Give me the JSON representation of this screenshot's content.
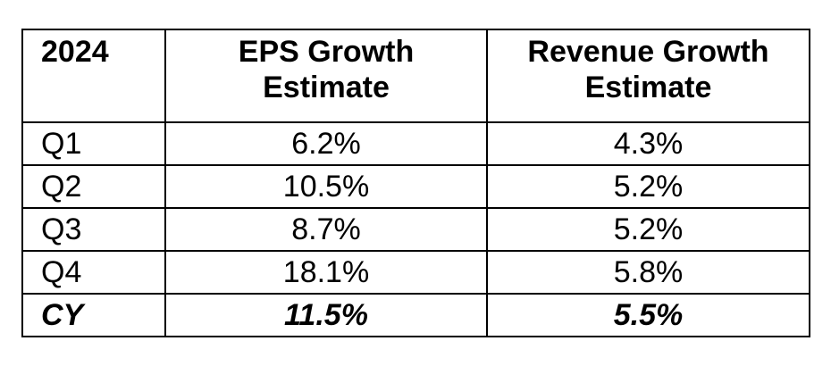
{
  "table": {
    "headers": {
      "period": "2024",
      "eps_line1": "EPS Growth",
      "eps_line2": "Estimate",
      "rev_line1": "Revenue Growth",
      "rev_line2": "Estimate"
    },
    "rows": [
      {
        "period": "Q1",
        "eps": "6.2%",
        "revenue": "4.3%"
      },
      {
        "period": "Q2",
        "eps": "10.5%",
        "revenue": "5.2%"
      },
      {
        "period": "Q3",
        "eps": "8.7%",
        "revenue": "5.2%"
      },
      {
        "period": "Q4",
        "eps": "18.1%",
        "revenue": "5.8%"
      },
      {
        "period": "CY",
        "eps": "11.5%",
        "revenue": "5.5%"
      }
    ]
  }
}
